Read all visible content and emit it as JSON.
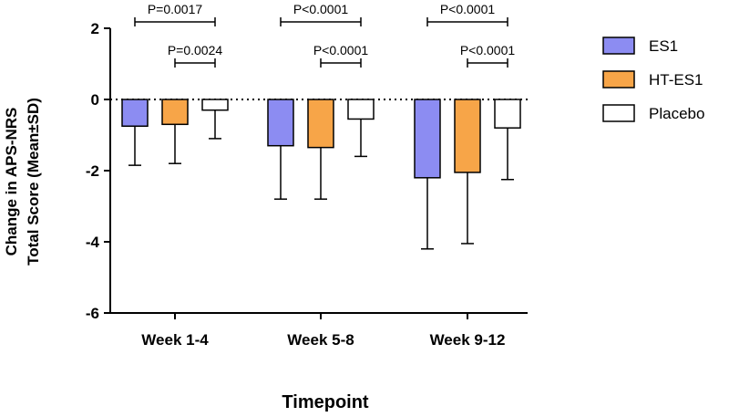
{
  "chart_data": {
    "type": "bar",
    "title": "",
    "xlabel": "Timepoint",
    "ylabel_lines": [
      "Change in APS-NRS",
      "Total Score (Mean±SD)"
    ],
    "ylim": [
      -6,
      2
    ],
    "yticks": [
      "2",
      "0",
      "-2",
      "-4",
      "-6"
    ],
    "ytick_values": [
      2,
      0,
      -2,
      -4,
      -6
    ],
    "categories": [
      "Week 1-4",
      "Week 5-8",
      "Week 9-12"
    ],
    "series": [
      {
        "name": "ES1",
        "color": "#8c8cf2",
        "values": [
          -0.75,
          -1.3,
          -2.2
        ],
        "sd": [
          1.1,
          1.5,
          2.0
        ]
      },
      {
        "name": "HT-ES1",
        "color": "#f7a548",
        "values": [
          -0.7,
          -1.35,
          -2.05
        ],
        "sd": [
          1.1,
          1.45,
          2.0
        ]
      },
      {
        "name": "Placebo",
        "color": "#ffffff",
        "values": [
          -0.3,
          -0.55,
          -0.8
        ],
        "sd": [
          0.8,
          1.05,
          1.45
        ]
      }
    ],
    "comparisons": [
      {
        "category": 0,
        "from": 0,
        "to": 2,
        "level": 2,
        "label": "P=0.0017"
      },
      {
        "category": 0,
        "from": 1,
        "to": 2,
        "level": 1,
        "label": "P=0.0024"
      },
      {
        "category": 1,
        "from": 0,
        "to": 2,
        "level": 2,
        "label": "P<0.0001"
      },
      {
        "category": 1,
        "from": 1,
        "to": 2,
        "level": 1,
        "label": "P<0.0001"
      },
      {
        "category": 2,
        "from": 0,
        "to": 2,
        "level": 2,
        "label": "P<0.0001"
      },
      {
        "category": 2,
        "from": 1,
        "to": 2,
        "level": 1,
        "label": "P<0.0001"
      }
    ],
    "reference_line": {
      "y": 0,
      "style": "dotted"
    },
    "legend_position": "right"
  }
}
